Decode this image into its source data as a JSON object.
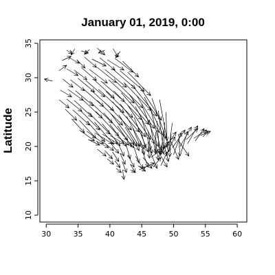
{
  "chart_data": {
    "type": "vector-field",
    "title": "January 01, 2019, 0:00",
    "xlabel": "",
    "ylabel": "Latitude",
    "xlim": [
      29,
      61.5
    ],
    "ylim": [
      9,
      35.5
    ],
    "x_ticks": [
      30,
      35,
      40,
      45,
      50,
      55,
      60
    ],
    "y_ticks": [
      10,
      15,
      20,
      25,
      30,
      35
    ],
    "grid": false,
    "legend": "none",
    "colors": {
      "arrows": "#000000",
      "frame": "#000000",
      "background": "#ffffff"
    },
    "note_values": "Each arrow: [lon, lat, u, v] with u/v as displacement in degrees (estimated).",
    "arrows": [
      [
        33.2,
        34.0,
        0.9,
        -0.5
      ],
      [
        34.5,
        34.2,
        -0.6,
        -0.9
      ],
      [
        35.5,
        33.9,
        1.1,
        -0.3
      ],
      [
        36.8,
        34.1,
        -0.8,
        -0.7
      ],
      [
        38.0,
        34.3,
        1.2,
        -1.0
      ],
      [
        39.2,
        34.0,
        -1.0,
        -0.4
      ],
      [
        40.5,
        34.2,
        0.8,
        -1.2
      ],
      [
        41.6,
        33.8,
        -0.7,
        -0.9
      ],
      [
        32.5,
        32.5,
        1.4,
        0.6
      ],
      [
        33.6,
        32.9,
        1.6,
        -0.8
      ],
      [
        34.8,
        32.6,
        1.3,
        -1.2
      ],
      [
        36.0,
        33.0,
        1.9,
        -1.5
      ],
      [
        37.2,
        32.7,
        2.2,
        -1.0
      ],
      [
        38.4,
        32.9,
        2.4,
        -1.8
      ],
      [
        39.6,
        32.6,
        2.6,
        -1.5
      ],
      [
        40.8,
        32.8,
        2.8,
        -2.0
      ],
      [
        42.0,
        32.4,
        2.5,
        -2.3
      ],
      [
        32.0,
        31.0,
        1.2,
        0.8
      ],
      [
        33.2,
        31.3,
        1.8,
        -1.0
      ],
      [
        34.4,
        31.1,
        2.0,
        -1.4
      ],
      [
        35.6,
        31.4,
        2.3,
        -1.8
      ],
      [
        36.8,
        31.2,
        2.8,
        -2.0
      ],
      [
        38.0,
        31.5,
        3.0,
        -2.2
      ],
      [
        39.2,
        31.2,
        3.4,
        -2.6
      ],
      [
        40.4,
        31.3,
        3.6,
        -2.9
      ],
      [
        41.6,
        31.0,
        3.8,
        -3.0
      ],
      [
        42.8,
        30.8,
        3.6,
        -3.4
      ],
      [
        31.0,
        29.5,
        -1.3,
        0.3
      ],
      [
        32.6,
        29.8,
        1.6,
        -1.2
      ],
      [
        33.8,
        29.7,
        2.2,
        -1.6
      ],
      [
        35.0,
        29.9,
        2.6,
        -2.0
      ],
      [
        36.2,
        29.6,
        3.0,
        -2.4
      ],
      [
        37.4,
        29.8,
        3.3,
        -2.8
      ],
      [
        38.6,
        29.5,
        3.7,
        -3.0
      ],
      [
        39.8,
        29.7,
        4.0,
        -3.4
      ],
      [
        41.0,
        29.4,
        4.2,
        -3.8
      ],
      [
        42.2,
        29.3,
        4.3,
        -4.1
      ],
      [
        43.4,
        29.0,
        4.0,
        -4.6
      ],
      [
        44.6,
        28.8,
        3.5,
        -5.0
      ],
      [
        32.2,
        28.2,
        1.8,
        -1.0
      ],
      [
        33.4,
        28.3,
        2.4,
        -1.6
      ],
      [
        34.6,
        28.1,
        2.8,
        -2.2
      ],
      [
        35.8,
        28.4,
        3.2,
        -2.6
      ],
      [
        37.0,
        28.2,
        3.6,
        -3.0
      ],
      [
        38.2,
        28.3,
        4.0,
        -3.4
      ],
      [
        39.4,
        28.0,
        4.2,
        -3.8
      ],
      [
        40.6,
        28.1,
        4.4,
        -4.2
      ],
      [
        41.8,
        27.8,
        4.3,
        -4.6
      ],
      [
        43.0,
        27.6,
        4.0,
        -5.0
      ],
      [
        44.2,
        27.4,
        3.6,
        -5.4
      ],
      [
        45.4,
        27.2,
        3.0,
        -5.6
      ],
      [
        46.6,
        27.0,
        2.2,
        -5.8
      ],
      [
        47.8,
        26.8,
        1.2,
        -6.0
      ],
      [
        32.0,
        26.8,
        1.6,
        -1.2
      ],
      [
        33.2,
        26.9,
        2.4,
        -1.8
      ],
      [
        34.4,
        26.7,
        2.8,
        -2.4
      ],
      [
        35.6,
        26.9,
        3.2,
        -2.8
      ],
      [
        36.8,
        26.6,
        3.6,
        -3.2
      ],
      [
        38.0,
        26.7,
        4.0,
        -3.6
      ],
      [
        39.2,
        26.4,
        4.2,
        -4.0
      ],
      [
        40.4,
        26.5,
        4.2,
        -4.4
      ],
      [
        41.6,
        26.2,
        4.0,
        -4.8
      ],
      [
        42.8,
        26.0,
        3.6,
        -5.0
      ],
      [
        44.0,
        25.8,
        3.0,
        -5.4
      ],
      [
        45.2,
        25.6,
        2.4,
        -5.6
      ],
      [
        46.4,
        25.4,
        1.6,
        -5.8
      ],
      [
        47.6,
        25.2,
        0.8,
        -5.6
      ],
      [
        48.8,
        25.0,
        0.2,
        -5.2
      ],
      [
        33.0,
        25.4,
        1.8,
        -1.6
      ],
      [
        34.2,
        25.3,
        2.6,
        -2.2
      ],
      [
        35.4,
        25.2,
        3.0,
        -2.8
      ],
      [
        36.6,
        25.0,
        3.4,
        -3.2
      ],
      [
        37.8,
        25.1,
        3.6,
        -3.6
      ],
      [
        39.0,
        24.9,
        3.8,
        -4.0
      ],
      [
        40.2,
        24.7,
        3.6,
        -4.4
      ],
      [
        41.4,
        24.6,
        3.2,
        -4.6
      ],
      [
        42.6,
        24.4,
        2.8,
        -4.8
      ],
      [
        43.8,
        24.2,
        2.2,
        -5.0
      ],
      [
        45.0,
        24.0,
        1.6,
        -5.0
      ],
      [
        46.2,
        23.9,
        1.0,
        -5.0
      ],
      [
        47.4,
        23.7,
        0.4,
        -4.8
      ],
      [
        48.6,
        23.5,
        -0.2,
        -4.6
      ],
      [
        49.8,
        23.4,
        -0.6,
        -4.2
      ],
      [
        34.0,
        24.0,
        2.0,
        -2.0
      ],
      [
        35.2,
        23.8,
        2.6,
        -2.6
      ],
      [
        36.4,
        23.7,
        2.8,
        -3.0
      ],
      [
        37.6,
        23.5,
        3.0,
        -3.2
      ],
      [
        38.8,
        23.3,
        2.8,
        -3.2
      ],
      [
        40.0,
        23.2,
        2.6,
        -3.2
      ],
      [
        41.2,
        23.0,
        2.2,
        -3.0
      ],
      [
        42.4,
        22.8,
        1.8,
        -2.8
      ],
      [
        43.6,
        22.6,
        1.2,
        -2.6
      ],
      [
        44.8,
        22.4,
        0.8,
        -2.6
      ],
      [
        46.0,
        22.3,
        0.4,
        -2.8
      ],
      [
        47.2,
        22.1,
        0.0,
        -3.0
      ],
      [
        48.4,
        22.0,
        -0.4,
        -3.2
      ],
      [
        49.6,
        21.9,
        -0.2,
        -3.4
      ],
      [
        50.8,
        21.8,
        0.2,
        -3.2
      ],
      [
        35.2,
        22.4,
        2.4,
        -1.6
      ],
      [
        36.4,
        22.2,
        2.6,
        -1.8
      ],
      [
        37.6,
        22.0,
        2.8,
        -1.6
      ],
      [
        38.8,
        21.8,
        2.4,
        -1.4
      ],
      [
        40.0,
        21.6,
        2.2,
        -1.2
      ],
      [
        41.2,
        21.4,
        1.8,
        -1.2
      ],
      [
        42.4,
        21.2,
        1.4,
        -1.4
      ],
      [
        43.6,
        21.0,
        1.0,
        -1.6
      ],
      [
        44.8,
        20.8,
        0.6,
        -2.0
      ],
      [
        46.0,
        20.7,
        0.2,
        -2.4
      ],
      [
        47.2,
        20.6,
        0.4,
        -2.6
      ],
      [
        48.4,
        20.6,
        0.8,
        -2.8
      ],
      [
        49.6,
        20.7,
        1.2,
        -2.6
      ],
      [
        50.8,
        20.8,
        1.6,
        -2.2
      ],
      [
        52.0,
        21.0,
        1.8,
        1.6
      ],
      [
        53.2,
        21.2,
        2.0,
        1.2
      ],
      [
        54.2,
        21.6,
        1.6,
        0.6
      ],
      [
        36.6,
        21.0,
        1.8,
        -0.8
      ],
      [
        37.8,
        20.8,
        2.0,
        -1.0
      ],
      [
        39.0,
        20.6,
        1.6,
        -1.2
      ],
      [
        40.2,
        20.4,
        1.2,
        -1.4
      ],
      [
        41.4,
        20.2,
        0.8,
        -1.6
      ],
      [
        42.6,
        20.0,
        0.6,
        -1.8
      ],
      [
        43.8,
        19.8,
        0.8,
        -2.2
      ],
      [
        45.0,
        19.6,
        1.0,
        -2.6
      ],
      [
        46.2,
        19.6,
        1.2,
        -2.8
      ],
      [
        47.4,
        19.6,
        1.6,
        -2.6
      ],
      [
        48.6,
        19.7,
        1.8,
        2.4
      ],
      [
        49.8,
        19.8,
        2.0,
        2.6
      ],
      [
        51.0,
        20.0,
        1.8,
        2.8
      ],
      [
        52.2,
        20.4,
        1.6,
        2.6
      ],
      [
        53.4,
        20.8,
        1.4,
        1.8
      ],
      [
        54.6,
        21.4,
        0.8,
        0.8
      ],
      [
        38.0,
        19.6,
        1.4,
        -1.0
      ],
      [
        39.2,
        19.4,
        1.2,
        -1.2
      ],
      [
        40.4,
        19.2,
        1.0,
        -1.4
      ],
      [
        41.6,
        19.0,
        0.8,
        -1.6
      ],
      [
        42.8,
        18.8,
        1.0,
        -1.8
      ],
      [
        44.0,
        18.6,
        1.2,
        -1.8
      ],
      [
        45.2,
        18.4,
        1.4,
        -1.6
      ],
      [
        46.4,
        18.4,
        1.8,
        1.2
      ],
      [
        47.6,
        18.5,
        1.6,
        2.2
      ],
      [
        48.8,
        18.6,
        1.4,
        2.8
      ],
      [
        50.0,
        18.8,
        1.2,
        3.2
      ],
      [
        51.2,
        19.2,
        1.0,
        3.0
      ],
      [
        39.6,
        18.2,
        1.0,
        -0.8
      ],
      [
        40.8,
        17.9,
        0.8,
        -1.0
      ],
      [
        42.0,
        17.6,
        0.6,
        -1.4
      ],
      [
        43.2,
        17.4,
        0.8,
        -1.2
      ],
      [
        44.4,
        17.2,
        1.2,
        -0.8
      ],
      [
        45.6,
        17.0,
        1.4,
        0.6
      ],
      [
        46.8,
        17.0,
        1.2,
        1.4
      ],
      [
        48.0,
        17.2,
        1.0,
        2.0
      ],
      [
        41.0,
        16.8,
        0.8,
        -0.6
      ],
      [
        42.0,
        16.6,
        0.2,
        -1.4
      ],
      [
        43.2,
        16.6,
        0.8,
        -0.4
      ],
      [
        44.6,
        16.6,
        1.0,
        0.4
      ]
    ]
  }
}
